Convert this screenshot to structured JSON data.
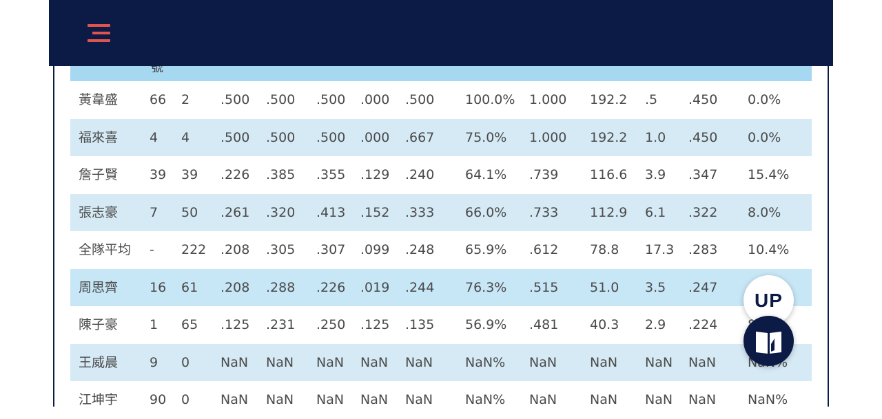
{
  "header": {
    "menu_icon": "menu-icon",
    "column_header_partial": "號"
  },
  "buttons": {
    "up_label": "UP",
    "book_icon": "book-icon"
  },
  "colors": {
    "topbar": "#0b1b45",
    "menu_icon": "#e0534e",
    "row_alt": "#d6eaf6",
    "row_highlight": "#c7e6f6",
    "header_row": "#a7d8f2"
  },
  "table": {
    "rows": [
      [
        "黃韋盛",
        "66",
        "2",
        ".500",
        ".500",
        ".500",
        ".000",
        ".500",
        "100.0%",
        "1.000",
        "192.2",
        ".5",
        ".450",
        "0.0%"
      ],
      [
        "福來喜",
        "4",
        "4",
        ".500",
        ".500",
        ".500",
        ".000",
        ".667",
        "75.0%",
        "1.000",
        "192.2",
        "1.0",
        ".450",
        "0.0%"
      ],
      [
        "詹子賢",
        "39",
        "39",
        ".226",
        ".385",
        ".355",
        ".129",
        ".240",
        "64.1%",
        ".739",
        "116.6",
        "3.9",
        ".347",
        "15.4%"
      ],
      [
        "張志豪",
        "7",
        "50",
        ".261",
        ".320",
        ".413",
        ".152",
        ".333",
        "66.0%",
        ".733",
        "112.9",
        "6.1",
        ".322",
        "8.0%"
      ],
      [
        "全隊平均",
        "-",
        "222",
        ".208",
        ".305",
        ".307",
        ".099",
        ".248",
        "65.9%",
        ".612",
        "78.8",
        "17.3",
        ".283",
        "10.4%"
      ],
      [
        "周思齊",
        "16",
        "61",
        ".208",
        ".288",
        ".226",
        ".019",
        ".244",
        "76.3%",
        ".515",
        "51.0",
        "3.5",
        ".247",
        ""
      ],
      [
        "陳子豪",
        "1",
        "65",
        ".125",
        ".231",
        ".250",
        ".125",
        ".135",
        "56.9%",
        ".481",
        "40.3",
        "2.9",
        ".224",
        "8.7%"
      ],
      [
        "王威晨",
        "9",
        "0",
        "NaN",
        "NaN",
        "NaN",
        "NaN",
        "NaN",
        "NaN%",
        "NaN",
        "NaN",
        "NaN",
        "NaN",
        "NaN%"
      ],
      [
        "江坤宇",
        "90",
        "0",
        "NaN",
        "NaN",
        "NaN",
        "NaN",
        "NaN",
        "NaN%",
        "NaN",
        "NaN",
        "NaN",
        "NaN",
        "NaN%"
      ]
    ]
  }
}
